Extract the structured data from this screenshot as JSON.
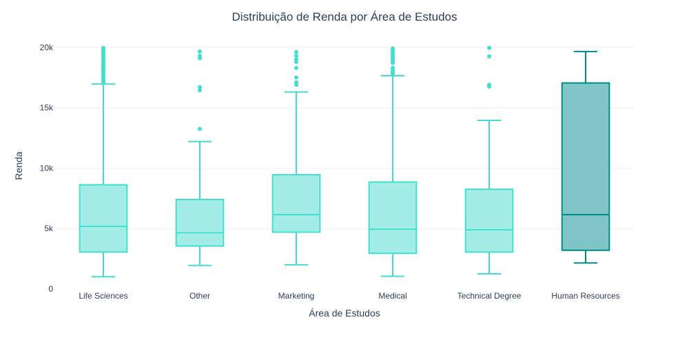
{
  "chart_data": {
    "type": "box",
    "title": "Distribuição de Renda por Área de Estudos",
    "xlabel": "Área de Estudos",
    "ylabel": "Renda",
    "ylim": [
      0,
      20500
    ],
    "yticks": [
      0,
      5000,
      10000,
      15000,
      20000
    ],
    "ytick_labels": [
      "0",
      "5k",
      "10k",
      "15k",
      "20k"
    ],
    "grid": true,
    "legend": "none",
    "colors": {
      "default_line": "#40e0d0",
      "default_fill": "#a3ede6",
      "highlight_line": "#008b8b",
      "highlight_fill": "#80c5c5",
      "text": "#2a3f5f",
      "grid": "#ebf0f8"
    },
    "categories": [
      {
        "name": "Life Sciences",
        "min": 1009,
        "q1": 3060,
        "median": 5180,
        "q3": 8620,
        "max": 16960,
        "outliers": [
          17100,
          17200,
          17300,
          17400,
          17550,
          17700,
          17850,
          18000,
          18150,
          18300,
          18450,
          18600,
          18750,
          18900,
          19050,
          19200,
          19350,
          19500,
          19650,
          19800,
          19950
        ]
      },
      {
        "name": "Other",
        "min": 1950,
        "q1": 3550,
        "median": 4650,
        "q3": 7400,
        "max": 12200,
        "outliers": [
          13250,
          16450,
          16700,
          19100,
          19300,
          19650
        ]
      },
      {
        "name": "Marketing",
        "min": 2000,
        "q1": 4700,
        "median": 6150,
        "q3": 9450,
        "max": 16300,
        "outliers": [
          16900,
          17100,
          17500,
          18300,
          18800,
          19000,
          19300,
          19600
        ]
      },
      {
        "name": "Medical",
        "min": 1050,
        "q1": 2950,
        "median": 4950,
        "q3": 8850,
        "max": 17650,
        "outliers": [
          17800,
          17950,
          18100,
          18300,
          18700,
          18850,
          19000,
          19150,
          19300,
          19450,
          19600,
          19750,
          19900
        ]
      },
      {
        "name": "Technical Degree",
        "min": 1250,
        "q1": 3050,
        "median": 4900,
        "q3": 8250,
        "max": 13950,
        "outliers": [
          16750,
          16900,
          19250,
          19950
        ]
      },
      {
        "name": "Human Resources",
        "min": 2150,
        "q1": 3200,
        "median": 6150,
        "q3": 17050,
        "max": 19650,
        "outliers": [],
        "highlight": true
      }
    ]
  }
}
